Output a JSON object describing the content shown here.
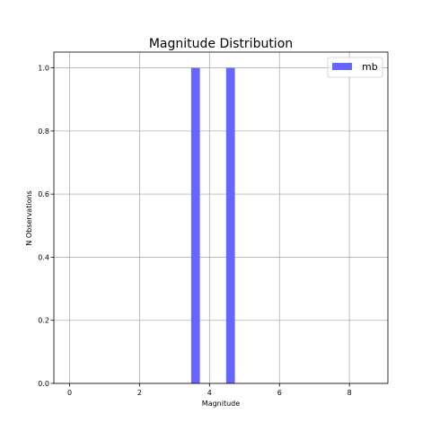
{
  "chart_data": {
    "type": "bar",
    "title": "Magnitude Distribution",
    "xlabel": "Magnitude",
    "ylabel": "N Observations",
    "xlim": [
      -0.45,
      9.1
    ],
    "ylim": [
      0,
      1.05
    ],
    "xticks": [
      0,
      2,
      4,
      6,
      8
    ],
    "yticks": [
      0.0,
      0.2,
      0.4,
      0.6,
      0.8,
      1.0
    ],
    "xtick_labels": [
      "0",
      "2",
      "4",
      "6",
      "8"
    ],
    "ytick_labels": [
      "0.0",
      "0.2",
      "0.4",
      "0.6",
      "0.8",
      "1.0"
    ],
    "grid": true,
    "legend_position": "top-right",
    "bar_width": 0.25,
    "series": [
      {
        "name": "mb",
        "color": "#6666ff",
        "bars": [
          {
            "x": 3.6,
            "value": 1.0
          },
          {
            "x": 4.6,
            "value": 1.0
          }
        ]
      }
    ]
  }
}
